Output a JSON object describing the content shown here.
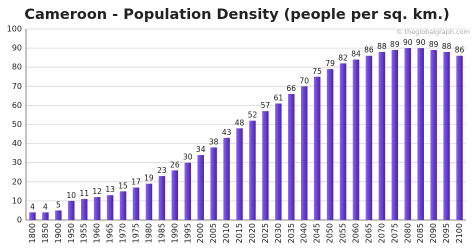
{
  "chart_data": {
    "type": "bar",
    "title": "Cameroon - Population Density (people per sq. km.)",
    "watermark": "© theglobalgraph.com",
    "categories": [
      "1800",
      "1850",
      "1900",
      "1950",
      "1955",
      "1960",
      "1965",
      "1970",
      "1975",
      "1980",
      "1985",
      "1990",
      "1995",
      "2000",
      "2005",
      "2010",
      "2015",
      "2020",
      "2025",
      "2030",
      "2035",
      "2040",
      "2045",
      "2050",
      "2055",
      "2060",
      "2065",
      "2070",
      "2075",
      "2080",
      "2085",
      "2090",
      "2095",
      "2100"
    ],
    "values": [
      4,
      4,
      5,
      10,
      11,
      12,
      13,
      15,
      17,
      19,
      23,
      26,
      30,
      34,
      38,
      43,
      48,
      52,
      57,
      61,
      66,
      70,
      75,
      79,
      82,
      84,
      86,
      88,
      89,
      90,
      90,
      89,
      88,
      86
    ],
    "color": "#6a3fd0",
    "ylim": [
      0,
      100
    ],
    "yticks": [
      0,
      10,
      20,
      30,
      40,
      50,
      60,
      70,
      80,
      90,
      100
    ],
    "grid": true
  }
}
